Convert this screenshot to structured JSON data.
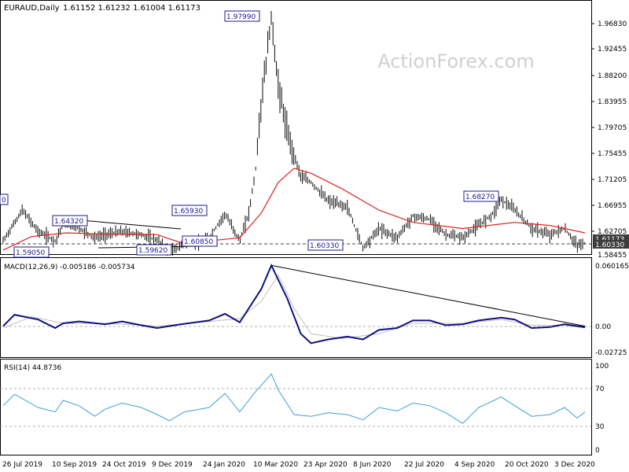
{
  "header": {
    "symbol": "EURAUD,Daily",
    "ohlc": "1.61152 1.61232 1.61004 1.61173"
  },
  "watermark": "ActionForex.com",
  "colors": {
    "price": "#0a0a0a",
    "ma": "#e02020",
    "macd_main": "#101080",
    "macd_signal": "#c0c0c0",
    "rsi": "#3aa0d8",
    "trendline": "#000000",
    "label_border": "#1a1a8c",
    "label_text": "#1a1a8c",
    "current_price_bg": "#3c3c3c"
  },
  "price_axis": {
    "ticks": [
      "1.96830",
      "1.92455",
      "1.88200",
      "1.83955",
      "1.79705",
      "1.75455",
      "1.71205",
      "1.66955",
      "1.62705",
      "1.58455"
    ],
    "current_price": "1.61173",
    "support_level": "1.60330"
  },
  "macd_axis": {
    "ticks": [
      "0.060165",
      "0.00",
      "-0.02725"
    ]
  },
  "rsi_axis": {
    "ticks": [
      "100",
      "70",
      "30",
      "0"
    ]
  },
  "x_axis": {
    "labels": [
      "26 Jul 2019",
      "10 Sep 2019",
      "24 Oct 2019",
      "9 Dec 2019",
      "24 Jan 2020",
      "10 Mar 2020",
      "23 Apr 2020",
      "8 Jun 2020",
      "22 Jul 2020",
      "4 Sep 2020",
      "20 Oct 2020",
      "3 Dec 2020"
    ]
  },
  "price_labels": [
    {
      "text": "1.97990"
    },
    {
      "text": "1.68270"
    },
    {
      "text": "1.65930"
    },
    {
      "text": "1.64320"
    },
    {
      "text": "1.60330"
    },
    {
      "text": "1.60850"
    },
    {
      "text": "1.59620"
    },
    {
      "text": "1.59050"
    },
    {
      "text": "0"
    }
  ],
  "macd_panel": {
    "title": "MACD(12,26,9) -0.005186 -0.005734"
  },
  "rsi_panel": {
    "title": "RSI(14) 44.8736"
  },
  "chart_data": [
    {
      "type": "bar",
      "title": "EURAUD,Daily",
      "subtitle": "1.61152 1.61232 1.61004 1.61173",
      "x_range": [
        "2019-07-26",
        "2020-12-21"
      ],
      "ylim": [
        1.5845,
        1.9683
      ],
      "series": [
        {
          "values": [
            [
              "2019-07-26",
              1.615
            ],
            [
              "2019-08-12",
              1.665
            ],
            [
              "2019-08-26",
              1.63
            ],
            [
              "2019-09-10",
              1.615
            ],
            [
              "2019-09-17",
              1.643
            ],
            [
              "2019-10-01",
              1.635
            ],
            [
              "2019-10-15",
              1.62
            ],
            [
              "2019-10-24",
              1.625
            ],
            [
              "2019-11-08",
              1.63
            ],
            [
              "2019-11-25",
              1.625
            ],
            [
              "2019-12-09",
              1.616
            ],
            [
              "2019-12-20",
              1.596
            ],
            [
              "2020-01-02",
              1.61
            ],
            [
              "2020-01-15",
              1.612
            ],
            [
              "2020-01-24",
              1.62
            ],
            [
              "2020-02-07",
              1.659
            ],
            [
              "2020-02-20",
              1.615
            ],
            [
              "2020-02-28",
              1.66
            ],
            [
              "2020-03-05",
              1.73
            ],
            [
              "2020-03-10",
              1.84
            ],
            [
              "2020-03-19",
              1.9799
            ],
            [
              "2020-03-24",
              1.88
            ],
            [
              "2020-04-02",
              1.79
            ],
            [
              "2020-04-14",
              1.72
            ],
            [
              "2020-04-23",
              1.71
            ],
            [
              "2020-05-08",
              1.68
            ],
            [
              "2020-05-25",
              1.67
            ],
            [
              "2020-06-08",
              1.6033
            ],
            [
              "2020-06-22",
              1.635
            ],
            [
              "2020-07-08",
              1.62
            ],
            [
              "2020-07-22",
              1.655
            ],
            [
              "2020-08-06",
              1.65
            ],
            [
              "2020-08-20",
              1.625
            ],
            [
              "2020-09-04",
              1.62
            ],
            [
              "2020-09-18",
              1.64
            ],
            [
              "2020-10-01",
              1.66
            ],
            [
              "2020-10-08",
              1.6827
            ],
            [
              "2020-10-20",
              1.665
            ],
            [
              "2020-11-04",
              1.635
            ],
            [
              "2020-11-20",
              1.625
            ],
            [
              "2020-12-03",
              1.635
            ],
            [
              "2020-12-14",
              1.607
            ],
            [
              "2020-12-21",
              1.6117
            ]
          ]
        },
        {
          "values": [
            [
              "2019-07-26",
              1.6
            ],
            [
              "2019-08-20",
              1.622
            ],
            [
              "2019-09-20",
              1.628
            ],
            [
              "2019-10-24",
              1.626
            ],
            [
              "2019-12-09",
              1.625
            ],
            [
              "2019-12-30",
              1.612
            ],
            [
              "2020-01-24",
              1.615
            ],
            [
              "2020-02-20",
              1.62
            ],
            [
              "2020-03-10",
              1.66
            ],
            [
              "2020-03-25",
              1.71
            ],
            [
              "2020-04-08",
              1.733
            ],
            [
              "2020-04-23",
              1.725
            ],
            [
              "2020-05-20",
              1.7
            ],
            [
              "2020-06-22",
              1.665
            ],
            [
              "2020-07-22",
              1.645
            ],
            [
              "2020-09-04",
              1.635
            ],
            [
              "2020-10-20",
              1.645
            ],
            [
              "2020-11-20",
              1.64
            ],
            [
              "2020-12-21",
              1.628
            ]
          ]
        }
      ],
      "annotations": [
        "1.97990",
        "1.68270",
        "1.65930",
        "1.64320",
        "1.60330",
        "1.60850",
        "1.59620",
        "1.59050"
      ],
      "horizontal_line": 1.6033
    },
    {
      "type": "line",
      "title": "MACD(12,26,9) -0.005186 -0.005734",
      "ylim": [
        -0.035,
        0.062
      ],
      "series": [
        {
          "values": [
            [
              "2019-07-26",
              -0.004
            ],
            [
              "2019-08-05",
              0.008
            ],
            [
              "2019-08-26",
              0.003
            ],
            [
              "2019-09-10",
              -0.006
            ],
            [
              "2019-09-17",
              -0.001
            ],
            [
              "2019-10-01",
              0.001
            ],
            [
              "2019-10-24",
              -0.002
            ],
            [
              "2019-11-08",
              0.001
            ],
            [
              "2019-11-25",
              -0.003
            ],
            [
              "2019-12-09",
              -0.006
            ],
            [
              "2019-12-30",
              -0.002
            ],
            [
              "2020-01-24",
              0.002
            ],
            [
              "2020-02-07",
              0.009
            ],
            [
              "2020-02-20",
              0.0
            ],
            [
              "2020-03-10",
              0.035
            ],
            [
              "2020-03-19",
              0.06
            ],
            [
              "2020-04-02",
              0.025
            ],
            [
              "2020-04-14",
              -0.012
            ],
            [
              "2020-04-23",
              -0.022
            ],
            [
              "2020-05-08",
              -0.018
            ],
            [
              "2020-05-25",
              -0.015
            ],
            [
              "2020-06-08",
              -0.018
            ],
            [
              "2020-06-22",
              -0.008
            ],
            [
              "2020-07-08",
              -0.006
            ],
            [
              "2020-07-22",
              0.002
            ],
            [
              "2020-08-06",
              0.002
            ],
            [
              "2020-08-20",
              -0.003
            ],
            [
              "2020-09-04",
              -0.002
            ],
            [
              "2020-09-18",
              0.002
            ],
            [
              "2020-10-08",
              0.005
            ],
            [
              "2020-10-20",
              0.003
            ],
            [
              "2020-11-04",
              -0.006
            ],
            [
              "2020-11-20",
              -0.005
            ],
            [
              "2020-12-03",
              -0.002
            ],
            [
              "2020-12-21",
              -0.005186
            ]
          ]
        },
        {
          "values": [
            [
              "2019-07-26",
              -0.006
            ],
            [
              "2019-08-20",
              0.006
            ],
            [
              "2019-09-17",
              -0.001
            ],
            [
              "2019-10-24",
              -0.001
            ],
            [
              "2019-12-09",
              -0.004
            ],
            [
              "2020-01-24",
              0.001
            ],
            [
              "2020-02-20",
              0.004
            ],
            [
              "2020-03-10",
              0.022
            ],
            [
              "2020-03-25",
              0.05
            ],
            [
              "2020-04-08",
              0.015
            ],
            [
              "2020-04-23",
              -0.012
            ],
            [
              "2020-05-20",
              -0.017
            ],
            [
              "2020-06-22",
              -0.012
            ],
            [
              "2020-07-22",
              -0.001
            ],
            [
              "2020-09-04",
              -0.001
            ],
            [
              "2020-10-08",
              0.003
            ],
            [
              "2020-11-04",
              -0.003
            ],
            [
              "2020-12-03",
              -0.003
            ],
            [
              "2020-12-21",
              -0.005734
            ]
          ]
        }
      ],
      "trendline": [
        [
          "2020-03-19",
          0.06
        ],
        [
          "2020-12-21",
          -0.004
        ]
      ]
    },
    {
      "type": "line",
      "title": "RSI(14) 44.8736",
      "ylim": [
        0,
        100
      ],
      "series": [
        {
          "values": [
            [
              "2019-07-26",
              52
            ],
            [
              "2019-08-05",
              65
            ],
            [
              "2019-08-26",
              50
            ],
            [
              "2019-09-10",
              45
            ],
            [
              "2019-09-17",
              58
            ],
            [
              "2019-10-01",
              52
            ],
            [
              "2019-10-15",
              40
            ],
            [
              "2019-10-24",
              48
            ],
            [
              "2019-11-08",
              55
            ],
            [
              "2019-11-25",
              50
            ],
            [
              "2019-12-09",
              42
            ],
            [
              "2019-12-20",
              35
            ],
            [
              "2020-01-02",
              45
            ],
            [
              "2020-01-24",
              50
            ],
            [
              "2020-02-07",
              66
            ],
            [
              "2020-02-20",
              45
            ],
            [
              "2020-03-05",
              68
            ],
            [
              "2020-03-19",
              88
            ],
            [
              "2020-03-25",
              70
            ],
            [
              "2020-04-08",
              42
            ],
            [
              "2020-04-23",
              40
            ],
            [
              "2020-05-08",
              44
            ],
            [
              "2020-05-25",
              42
            ],
            [
              "2020-06-08",
              36
            ],
            [
              "2020-06-22",
              50
            ],
            [
              "2020-07-08",
              46
            ],
            [
              "2020-07-22",
              55
            ],
            [
              "2020-08-06",
              52
            ],
            [
              "2020-08-20",
              44
            ],
            [
              "2020-09-04",
              32
            ],
            [
              "2020-09-18",
              50
            ],
            [
              "2020-10-08",
              62
            ],
            [
              "2020-10-20",
              52
            ],
            [
              "2020-11-04",
              40
            ],
            [
              "2020-11-20",
              42
            ],
            [
              "2020-12-03",
              50
            ],
            [
              "2020-12-14",
              38
            ],
            [
              "2020-12-21",
              44.87
            ]
          ]
        }
      ],
      "reference_lines": [
        70,
        30
      ]
    }
  ]
}
